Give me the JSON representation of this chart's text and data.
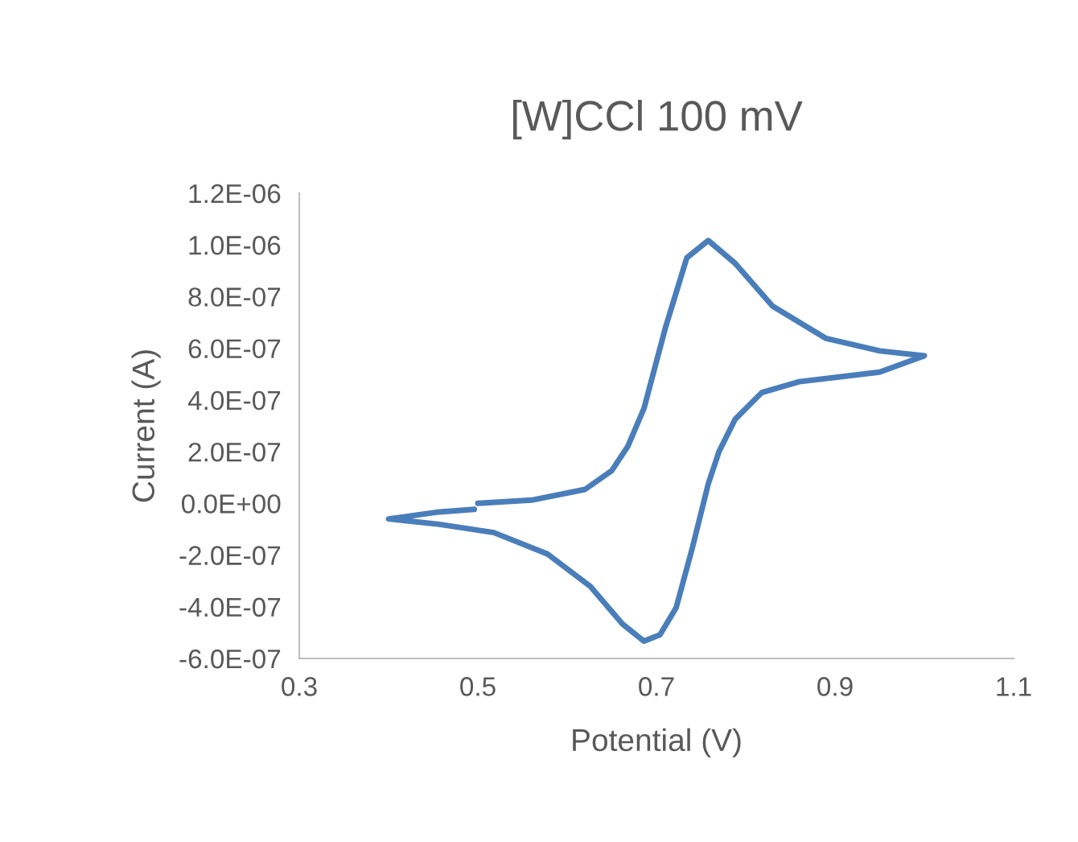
{
  "chart_data": {
    "type": "line",
    "title": "[W]CCl 100 mV",
    "xlabel": "Potential (V)",
    "ylabel": "Current (A)",
    "xlim": [
      0.3,
      1.1
    ],
    "xticks": [
      0.3,
      0.5,
      0.7,
      0.9,
      1.1
    ],
    "ylim": [
      -6e-07,
      1.2e-06
    ],
    "yticks": [
      {
        "value": -6e-07,
        "label": "-6.0E-07"
      },
      {
        "value": -4e-07,
        "label": "-4.0E-07"
      },
      {
        "value": -2e-07,
        "label": "-2.0E-07"
      },
      {
        "value": 0,
        "label": "0.0E+00"
      },
      {
        "value": 2e-07,
        "label": "2.0E-07"
      },
      {
        "value": 4e-07,
        "label": "4.0E-07"
      },
      {
        "value": 6e-07,
        "label": "6.0E-07"
      },
      {
        "value": 8e-07,
        "label": "8.0E-07"
      },
      {
        "value": 1e-06,
        "label": "1.0E-06"
      },
      {
        "value": 1.2e-06,
        "label": "1.2E-06"
      }
    ],
    "grid": false,
    "legend": false,
    "marker": "none",
    "line_style": "solid",
    "series": [
      {
        "color": "#4a7ebb",
        "x": [
          0.5,
          0.56,
          0.62,
          0.65,
          0.668,
          0.686,
          0.71,
          0.734,
          0.758,
          0.788,
          0.83,
          0.89,
          0.95,
          1.0,
          0.95,
          0.86,
          0.818,
          0.788,
          0.77,
          0.758,
          0.74,
          0.722,
          0.704,
          0.686,
          0.662,
          0.626,
          0.578,
          0.518,
          0.457,
          0.4,
          0.457,
          0.496
        ],
        "values": [
          0.0,
          1.25e-08,
          5.4e-08,
          1.27e-07,
          2.21e-07,
          3.67e-07,
          6.79e-07,
          9.5e-07,
          1.017e-06,
          9.29e-07,
          7.63e-07,
          6.38e-07,
          5.9e-07,
          5.71e-07,
          5.08e-07,
          4.71e-07,
          4.29e-07,
          3.25e-07,
          2e-07,
          7.5e-08,
          -1.75e-07,
          -4.04e-07,
          -5.08e-07,
          -5.33e-07,
          -4.67e-07,
          -3.21e-07,
          -1.96e-07,
          -1.13e-07,
          -8.1e-08,
          -6e-08,
          -3.3e-08,
          -2.3e-08
        ]
      }
    ]
  }
}
